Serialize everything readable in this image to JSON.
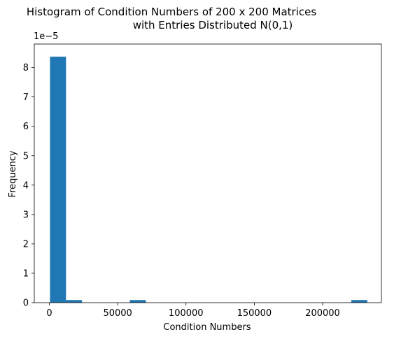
{
  "chart_data": {
    "type": "bar",
    "title": "Histogram of Condition Numbers of 200 x 200 Matrices",
    "subtitle": "with Entries Distributed N(0,1)",
    "xlabel": "Condition Numbers",
    "ylabel": "Frequency",
    "y_multiplier": "1e−5",
    "xlim": [
      -11000,
      243000
    ],
    "ylim": [
      0,
      8.8
    ],
    "x_ticks": [
      0,
      50000,
      100000,
      150000,
      200000
    ],
    "x_tick_labels": [
      "0",
      "50000",
      "100000",
      "150000",
      "200000"
    ],
    "y_ticks": [
      0,
      1,
      2,
      3,
      4,
      5,
      6,
      7,
      8
    ],
    "y_tick_labels": [
      "0",
      "1",
      "2",
      "3",
      "4",
      "5",
      "6",
      "7",
      "8"
    ],
    "grid": false,
    "bar_color": "#1f77b4",
    "bins": [
      {
        "x0": 500,
        "x1": 12200,
        "value": 8.37
      },
      {
        "x0": 12200,
        "x1": 23900,
        "value": 0.09
      },
      {
        "x0": 58900,
        "x1": 70600,
        "value": 0.09
      },
      {
        "x0": 221000,
        "x1": 232700,
        "value": 0.09
      }
    ]
  }
}
